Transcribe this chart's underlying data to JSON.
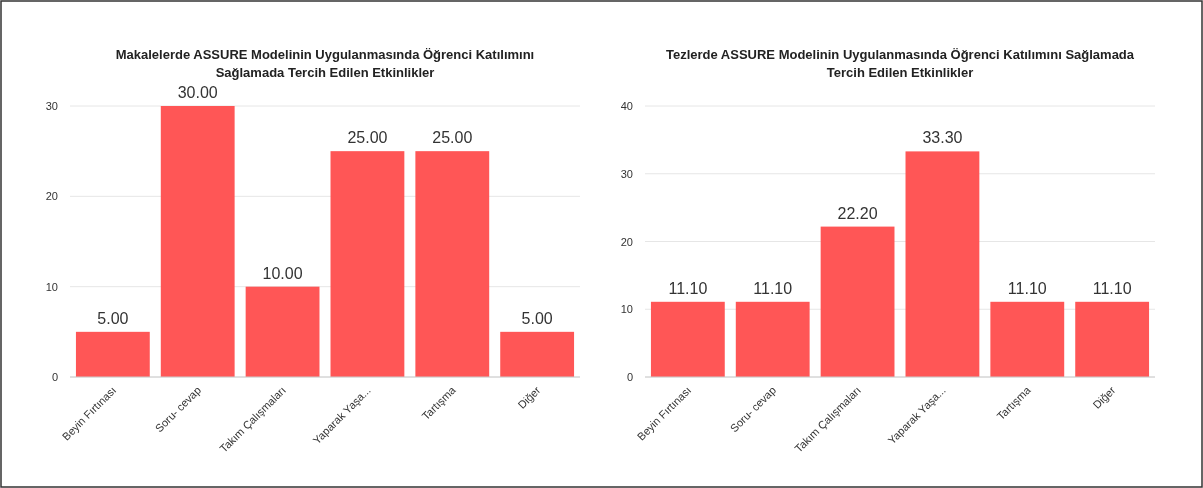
{
  "chart_data": [
    {
      "type": "bar",
      "title": "Makalelerde ASSURE Modelinin Uygulanmasında Öğrenci Katılımını Sağlamada Tercih Edilen Etkinlikler",
      "categories": [
        "Beyin Fırtınası",
        "Soru- cevap",
        "Takım Çalışmaları",
        "Yaparak Yaşa...",
        "Tartışma",
        "Diğer"
      ],
      "values": [
        5,
        30,
        10,
        25,
        25,
        5
      ],
      "value_labels": [
        "5.00",
        "30.00",
        "10.00",
        "25.00",
        "25.00",
        "5.00"
      ],
      "color": "#ff5656",
      "ylim": [
        0,
        30
      ],
      "yticks": [
        0,
        10,
        20,
        30
      ],
      "grid": "y"
    },
    {
      "type": "bar",
      "title": "Tezlerde ASSURE Modelinin Uygulanmasında Öğrenci Katılımını Sağlamada Tercih Edilen Etkinlikler",
      "categories": [
        "Beyin Fırtınası",
        "Soru- cevap",
        "Takım Çalışmaları",
        "Yaparak Yaşa...",
        "Tartışma",
        "Diğer"
      ],
      "values": [
        11.1,
        11.1,
        22.2,
        33.3,
        11.1,
        11.1
      ],
      "value_labels": [
        "11.10",
        "11.10",
        "22.20",
        "33.30",
        "11.10",
        "11.10"
      ],
      "color": "#ff5656",
      "ylim": [
        0,
        40
      ],
      "yticks": [
        0,
        10,
        20,
        30,
        40
      ],
      "grid": "y"
    }
  ]
}
